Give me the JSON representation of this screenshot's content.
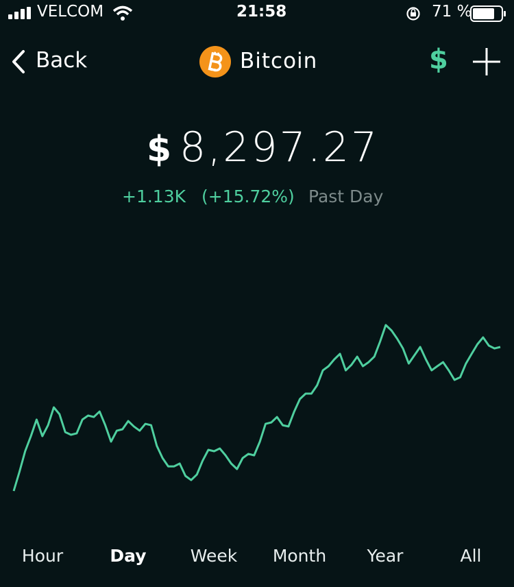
{
  "status_bar": {
    "carrier": "VELCOM",
    "time": "21:58",
    "battery": "71 %"
  },
  "header": {
    "back": "Back",
    "title": "Bitcoin",
    "currency": "$"
  },
  "price": {
    "symbol": "$",
    "value": "8,297.27",
    "change": "+1.13K",
    "change_percent": "(+15.72%)",
    "period": "Past Day"
  },
  "chart_data": {
    "type": "line",
    "series": [
      {
        "color": "#4fcf9f",
        "values": [
          7167,
          7318,
          7480,
          7599,
          7729,
          7599,
          7685,
          7826,
          7772,
          7631,
          7610,
          7621,
          7729,
          7761,
          7750,
          7793,
          7685,
          7556,
          7642,
          7653,
          7718,
          7675,
          7642,
          7696,
          7685,
          7523,
          7426,
          7361,
          7361,
          7383,
          7286,
          7253,
          7297,
          7405,
          7491,
          7480,
          7502,
          7448,
          7383,
          7340,
          7426,
          7459,
          7448,
          7556,
          7696,
          7707,
          7750,
          7685,
          7675,
          7793,
          7891,
          7934,
          7934,
          7999,
          8117,
          8150,
          8204,
          8247,
          8117,
          8161,
          8225,
          8150,
          8182,
          8225,
          8344,
          8474,
          8431,
          8366,
          8290,
          8171,
          8236,
          8301,
          8204,
          8117,
          8150,
          8182,
          8117,
          8042,
          8063,
          8171,
          8247,
          8323,
          8377,
          8312,
          8290,
          8301
        ]
      }
    ]
  },
  "tabs": [
    "Hour",
    "Day",
    "Week",
    "Month",
    "Year",
    "All"
  ]
}
